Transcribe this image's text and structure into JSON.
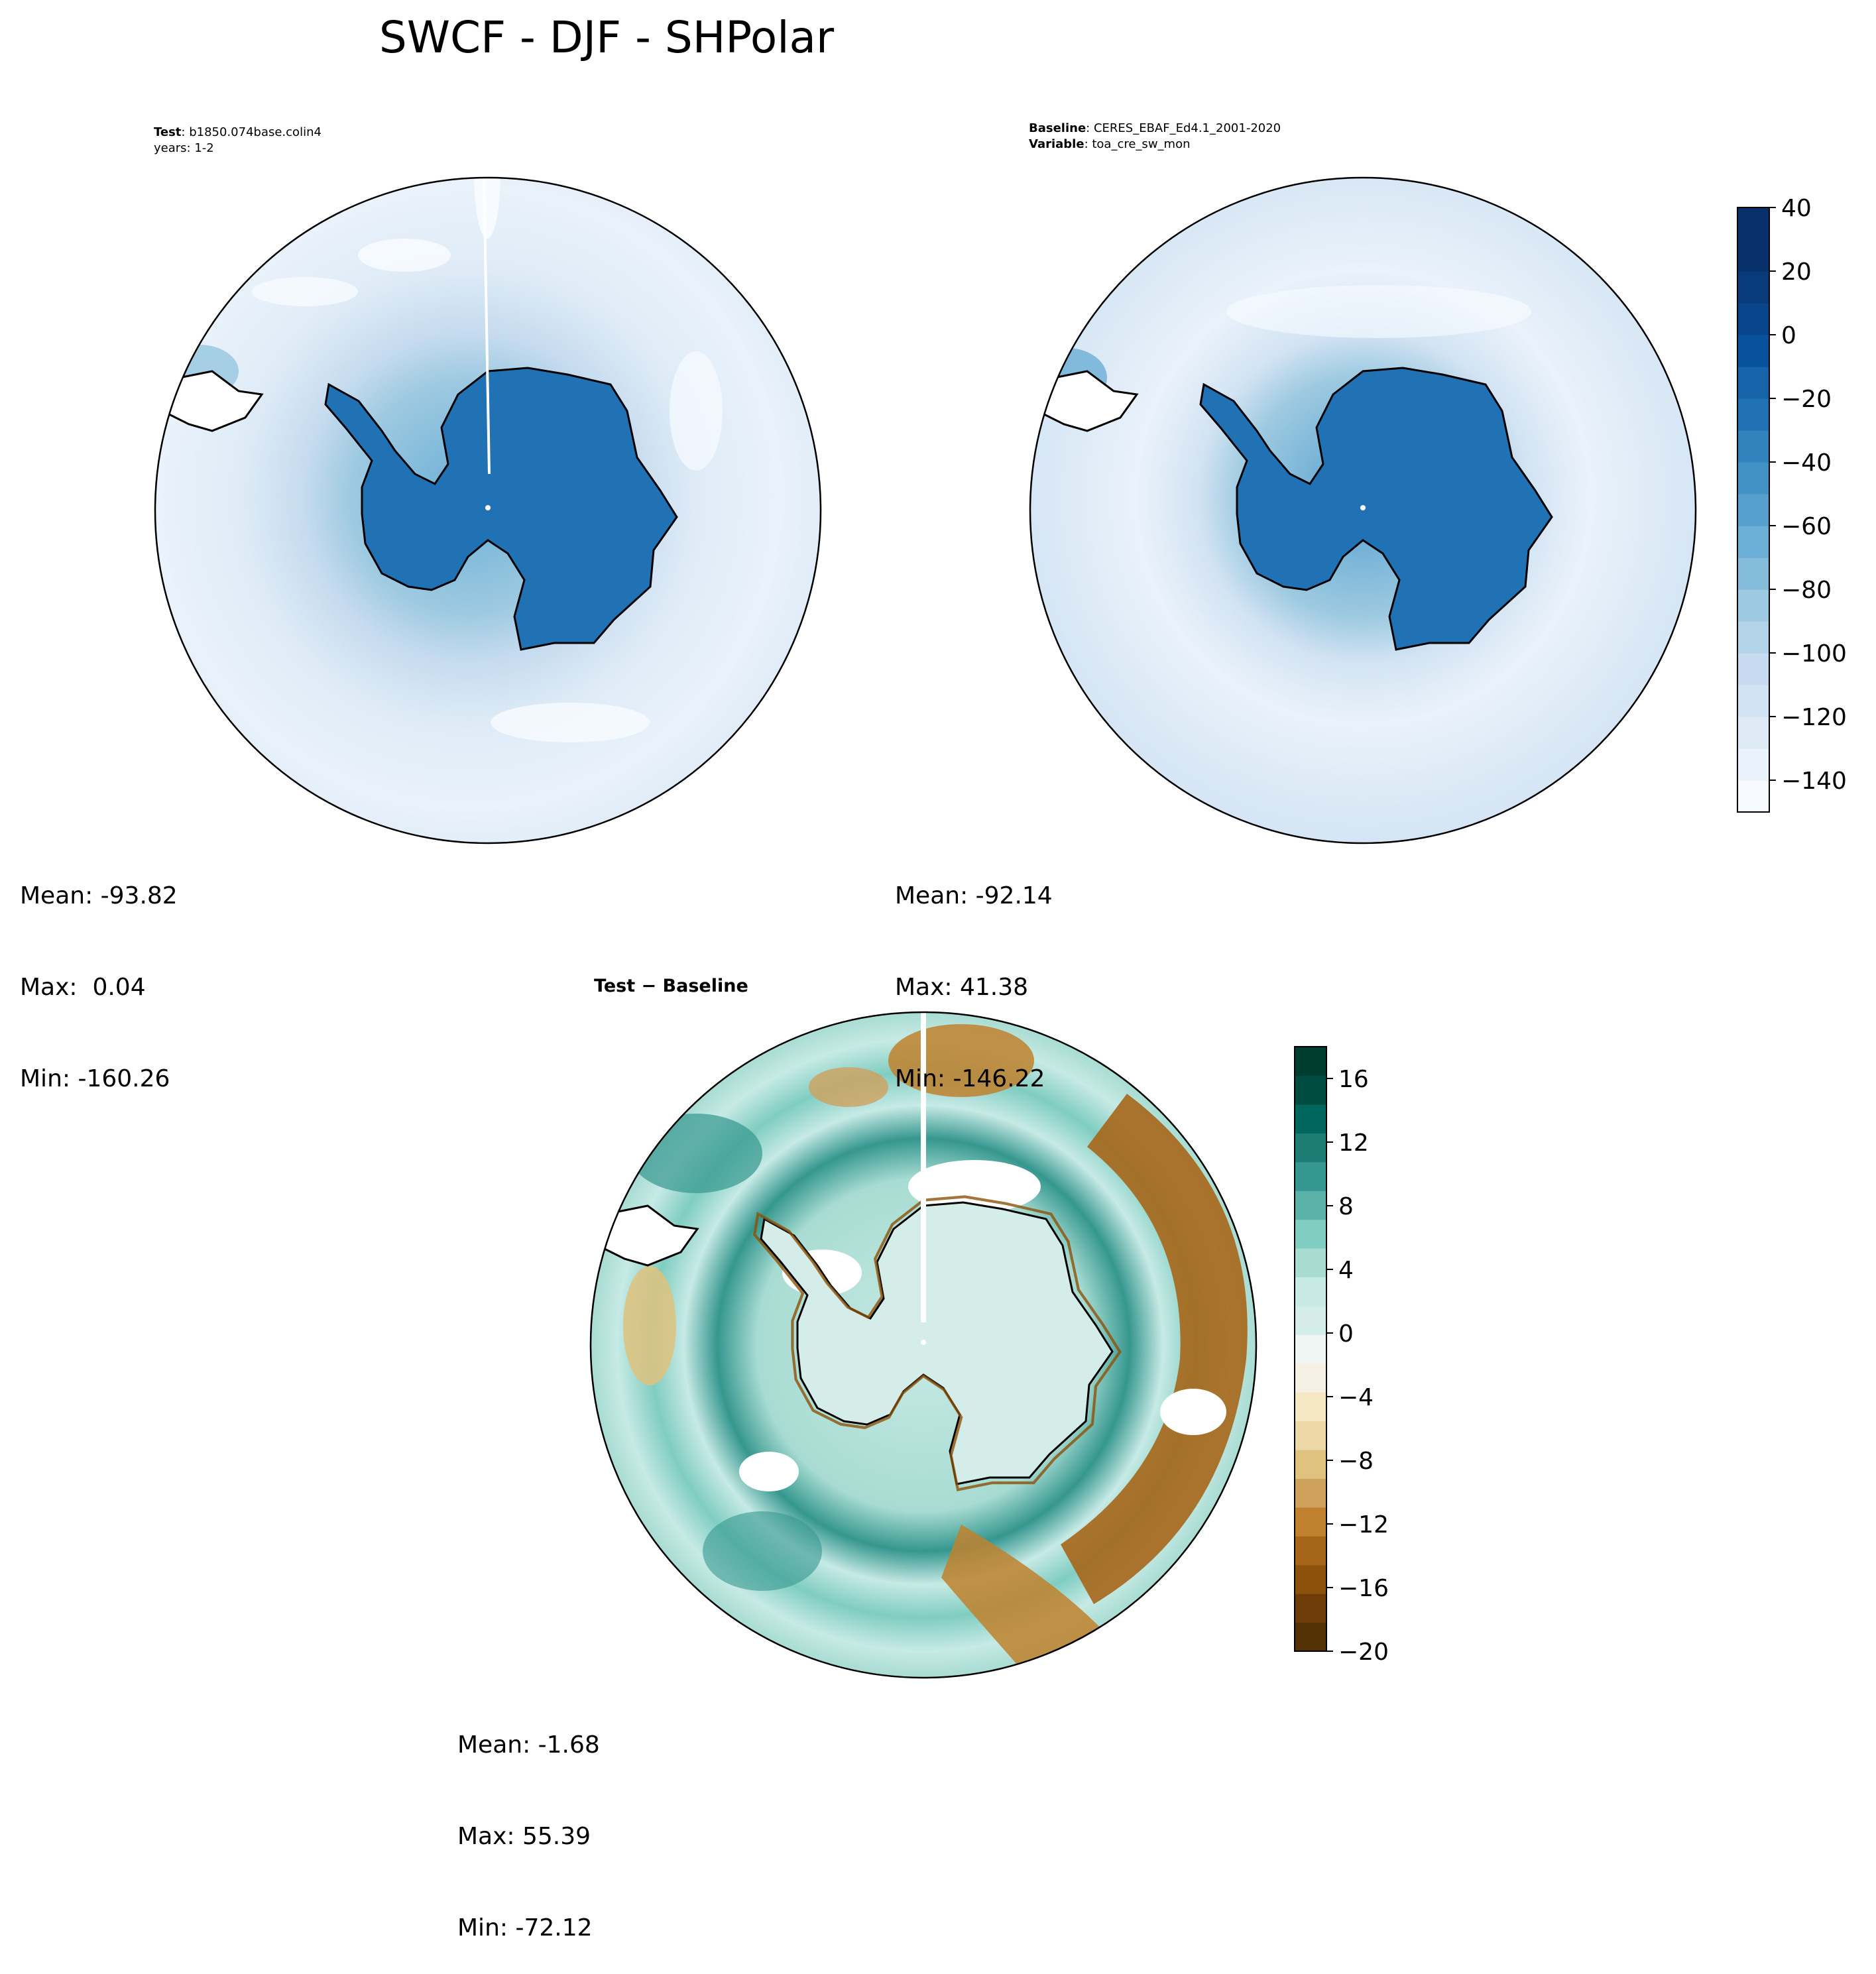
{
  "figure": {
    "title": "SWCF - DJF - SHPolar"
  },
  "test_panel": {
    "label_key": "Test",
    "label_value": "b1850.074base.colin4",
    "years": "years: 1-2",
    "stats": {
      "mean": "Mean: -93.82",
      "max": "Max:  0.04",
      "min": "Min: -160.26"
    }
  },
  "baseline_panel": {
    "label_key": "Baseline",
    "label_value": "CERES_EBAF_Ed4.1_2001-2020",
    "variable_key": "Variable",
    "variable_value": "toa_cre_sw_mon",
    "stats": {
      "mean": "Mean: -92.14",
      "max": "Max: 41.38",
      "min": "Min: -146.22"
    }
  },
  "diff_panel": {
    "title": "Test − Baseline",
    "stats": {
      "mean": "Mean: -1.68",
      "max": "Max: 55.39",
      "min": "Min: -72.12"
    }
  },
  "colorbar_main": {
    "ticks": [
      "40",
      "20",
      "0",
      "−20",
      "−40",
      "−60",
      "−80",
      "−100",
      "−120",
      "−140"
    ],
    "tick_values": [
      40,
      20,
      0,
      -20,
      -40,
      -60,
      -80,
      -100,
      -120,
      -140
    ],
    "range": [
      -150,
      40
    ],
    "colors": [
      "#f7fbff",
      "#eaf2fb",
      "#deebf7",
      "#d2e3f3",
      "#c6dbef",
      "#b3d3e8",
      "#9ecae1",
      "#84bcdb",
      "#6baed6",
      "#57a0ce",
      "#4292c6",
      "#3282be",
      "#2171b5",
      "#1763aa",
      "#08519c",
      "#08458a",
      "#083b7a",
      "#08306b",
      "#08306b"
    ]
  },
  "colorbar_diff": {
    "ticks": [
      "16",
      "12",
      "8",
      "4",
      "0",
      "−4",
      "−8",
      "−12",
      "−16",
      "−20"
    ],
    "tick_values": [
      16,
      12,
      8,
      4,
      0,
      -4,
      -8,
      -12,
      -16,
      -20
    ],
    "range": [
      -20,
      18
    ],
    "colors": [
      "#543005",
      "#6f3c09",
      "#8c510a",
      "#a6661a",
      "#bf812d",
      "#cfa15c",
      "#dfc27d",
      "#ecd7a6",
      "#f6e8c3",
      "#f5f0e3",
      "#eef5f3",
      "#d5ede8",
      "#c7eae5",
      "#a8dcd2",
      "#80cdc1",
      "#5ab2a8",
      "#35978f",
      "#1d7d74",
      "#01665e",
      "#004b40",
      "#003c30"
    ]
  },
  "map_colors": {
    "ocean_light": "#eaf2fb",
    "ocean_mid": "#d2e3f3",
    "antarctica_fill": "#2171b5",
    "diff_land": "#d5ede8",
    "diff_ring": "#1d7d74"
  }
}
